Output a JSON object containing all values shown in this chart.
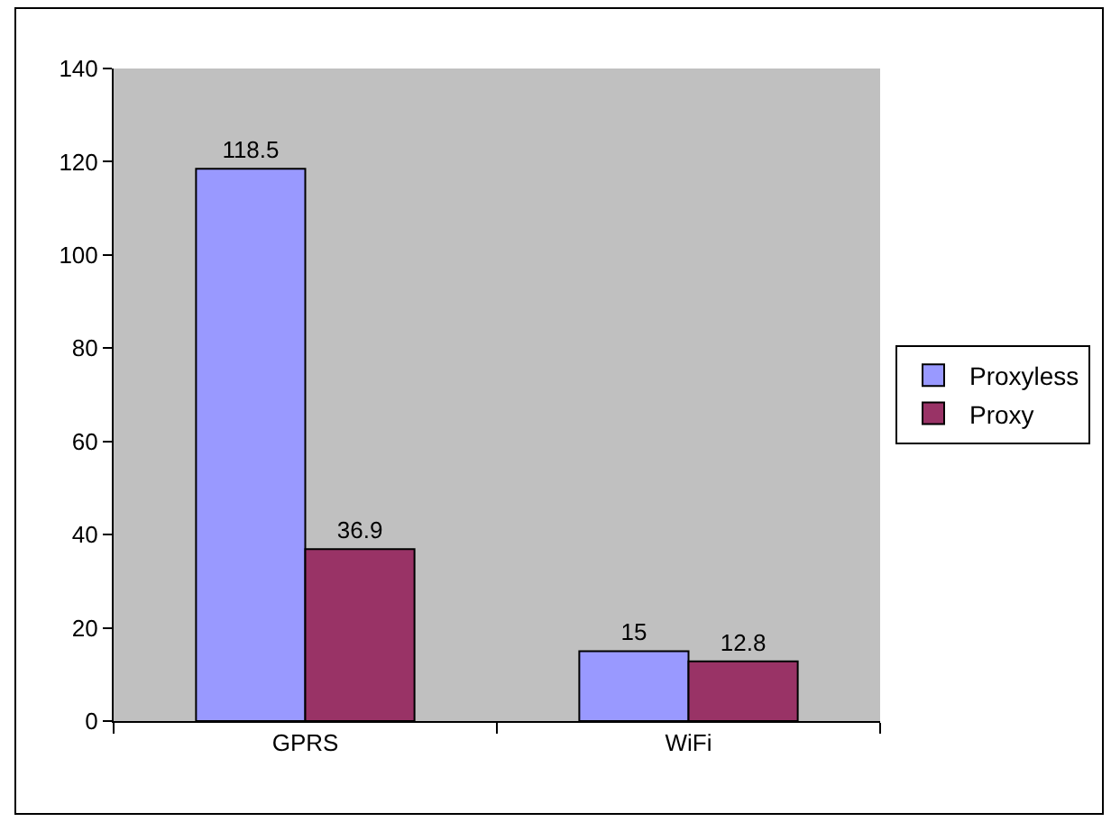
{
  "chart_data": {
    "type": "bar",
    "categories": [
      "GPRS",
      "WiFi"
    ],
    "series": [
      {
        "name": "Proxyless",
        "color": "#9999ff",
        "values": [
          118.5,
          15
        ]
      },
      {
        "name": "Proxy",
        "color": "#993366",
        "values": [
          36.9,
          12.8
        ]
      }
    ],
    "ylim": [
      0,
      140
    ],
    "yticks": [
      0,
      20,
      40,
      60,
      80,
      100,
      120,
      140
    ],
    "grid": false,
    "legend": "right",
    "data_labels": true
  }
}
